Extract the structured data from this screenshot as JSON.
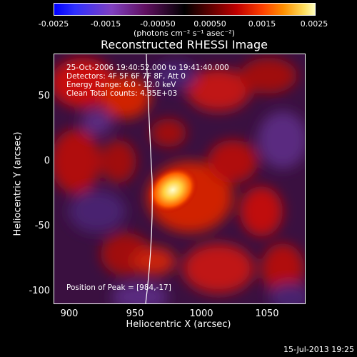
{
  "colorbar": {
    "ticks": [
      "-0.0025",
      "-0.0015",
      "-0.00050",
      "0.00050",
      "0.0015",
      "0.0025"
    ],
    "unit": "(photons cm⁻² s⁻¹ asec⁻²)"
  },
  "title": "Reconstructed RHESSI Image",
  "info": {
    "time_range": "25-Oct-2006 19:40:52.000 to 19:41:40.000",
    "detectors": "Detectors: 4F 5F 6F 7F 8F, Att 0",
    "energy": "Energy Range: 6.0 - 12.0 keV",
    "clean": "Clean    Total counts: 4.35E+03",
    "peak": "Position of Peak = [984,-17]"
  },
  "axes": {
    "xlabel": "Heliocentric X (arcsec)",
    "ylabel": "Heliocentric Y (arcsec)",
    "xticks": [
      "900",
      "950",
      "1000",
      "1050"
    ],
    "yticks": [
      "50",
      "0",
      "-50",
      "-100"
    ]
  },
  "timestamp": "15-Jul-2013 19:25",
  "colors": {
    "limb": "#ffffff",
    "peak": "#ffffc0",
    "positive": "#c00000",
    "negative": "#5a2a80"
  }
}
